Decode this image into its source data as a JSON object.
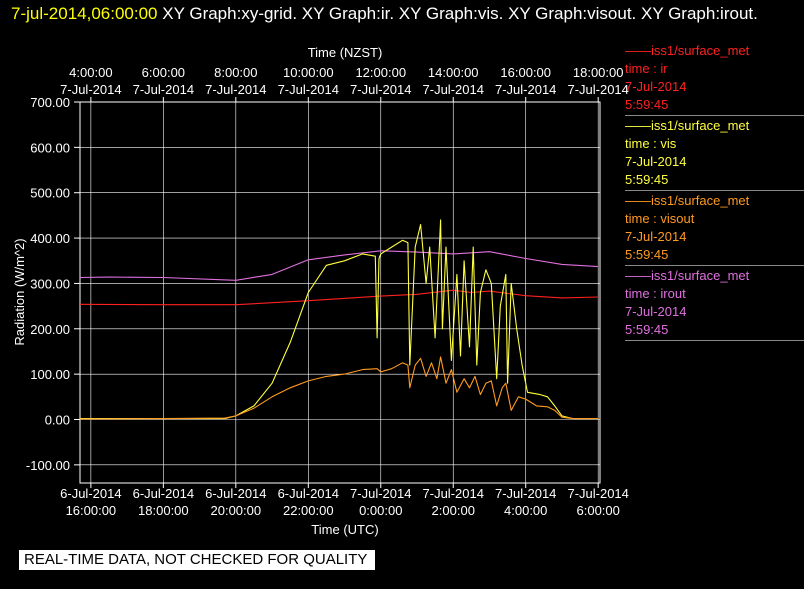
{
  "header": {
    "timestamp": "7-jul-2014,06:00:00",
    "graphs": "XY Graph:xy-grid.  XY Graph:ir.  XY Graph:vis.  XY Graph:visout.  XY Graph:irout."
  },
  "banner": "REAL-TIME DATA, NOT CHECKED FOR QUALITY",
  "legend": [
    {
      "source": "iss1/surface_met",
      "field": "time : ir",
      "date": "7-Jul-2014",
      "time": "5:59:45",
      "color": "#ff2020"
    },
    {
      "source": "iss1/surface_met",
      "field": "time : vis",
      "date": "7-Jul-2014",
      "time": "5:59:45",
      "color": "#ffff40"
    },
    {
      "source": "iss1/surface_met",
      "field": "time : visout",
      "date": "7-Jul-2014",
      "time": "5:59:45",
      "color": "#ff9a20"
    },
    {
      "source": "iss1/surface_met",
      "field": "time : irout",
      "date": "7-Jul-2014",
      "time": "5:59:45",
      "color": "#e070e0"
    }
  ],
  "chart_data": {
    "type": "line",
    "ylabel": "Radiation (W/m^2)",
    "xlabel_top": "Time (NZST)",
    "xlabel_bottom": "Time (UTC)",
    "ylim": [
      -140,
      700
    ],
    "xlim_utc_hours": [
      -8.3,
      6.05
    ],
    "grid": true,
    "yticks": [
      {
        "value": 700,
        "label": "700.00"
      },
      {
        "value": 600,
        "label": "600.00"
      },
      {
        "value": 500,
        "label": "500.00"
      },
      {
        "value": 400,
        "label": "400.00"
      },
      {
        "value": 300,
        "label": "300.00"
      },
      {
        "value": 200,
        "label": "200.00"
      },
      {
        "value": 100,
        "label": "100.00"
      },
      {
        "value": 0,
        "label": "0.00"
      },
      {
        "value": -100,
        "label": "-100.00"
      }
    ],
    "xticks_bottom": [
      {
        "x": -8,
        "date": "6-Jul-2014",
        "time": "16:00:00"
      },
      {
        "x": -6,
        "date": "6-Jul-2014",
        "time": "18:00:00"
      },
      {
        "x": -4,
        "date": "6-Jul-2014",
        "time": "20:00:00"
      },
      {
        "x": -2,
        "date": "6-Jul-2014",
        "time": "22:00:00"
      },
      {
        "x": 0,
        "date": "7-Jul-2014",
        "time": "0:00:00"
      },
      {
        "x": 2,
        "date": "7-Jul-2014",
        "time": "2:00:00"
      },
      {
        "x": 4,
        "date": "7-Jul-2014",
        "time": "4:00:00"
      },
      {
        "x": 6,
        "date": "7-Jul-2014",
        "time": "6:00:00"
      }
    ],
    "xticks_top": [
      {
        "x": -8,
        "time": "4:00:00",
        "date": "7-Jul-2014"
      },
      {
        "x": -6,
        "time": "6:00:00",
        "date": "7-Jul-2014"
      },
      {
        "x": -4,
        "time": "8:00:00",
        "date": "7-Jul-2014"
      },
      {
        "x": -2,
        "time": "10:00:00",
        "date": "7-Jul-2014"
      },
      {
        "x": 0,
        "time": "12:00:00",
        "date": "7-Jul-2014"
      },
      {
        "x": 2,
        "time": "14:00:00",
        "date": "7-Jul-2014"
      },
      {
        "x": 4,
        "time": "16:00:00",
        "date": "7-Jul-2014"
      },
      {
        "x": 6,
        "time": "18:00:00",
        "date": "7-Jul-2014"
      }
    ],
    "series": [
      {
        "name": "time : irout",
        "color": "#e070e0",
        "x": [
          -8.3,
          -7.5,
          -6,
          -4,
          -3,
          -2,
          -1,
          0,
          1,
          2,
          3,
          4,
          5,
          6
        ],
        "y": [
          313,
          314,
          313,
          307,
          320,
          352,
          363,
          372,
          369,
          365,
          370,
          355,
          342,
          337
        ]
      },
      {
        "name": "time : ir",
        "color": "#ff2020",
        "x": [
          -8.3,
          -6,
          -4,
          -2,
          0,
          1,
          2,
          2.5,
          3,
          4,
          5,
          6
        ],
        "y": [
          254,
          253,
          253,
          262,
          272,
          276,
          285,
          280,
          283,
          273,
          268,
          270
        ]
      },
      {
        "name": "time : vis",
        "color": "#ffff40",
        "x": [
          -8.3,
          -6,
          -4.3,
          -4,
          -3.5,
          -3,
          -2.5,
          -2,
          -1.5,
          -1,
          -0.5,
          -0.15,
          -0.1,
          -0.05,
          0,
          0.3,
          0.6,
          0.75,
          0.8,
          0.95,
          1.1,
          1.25,
          1.35,
          1.5,
          1.65,
          1.7,
          1.8,
          1.95,
          2.1,
          2.2,
          2.3,
          2.45,
          2.55,
          2.65,
          2.75,
          2.9,
          3.05,
          3.2,
          3.3,
          3.45,
          3.5,
          3.6,
          3.75,
          3.9,
          4.05,
          4.4,
          4.6,
          4.8,
          5,
          5.3,
          6
        ],
        "y": [
          2,
          2,
          2,
          8,
          30,
          80,
          170,
          280,
          340,
          350,
          365,
          360,
          180,
          355,
          365,
          380,
          395,
          390,
          120,
          380,
          430,
          300,
          380,
          180,
          440,
          200,
          380,
          130,
          320,
          140,
          350,
          160,
          380,
          120,
          280,
          330,
          300,
          90,
          250,
          320,
          80,
          300,
          200,
          120,
          60,
          55,
          50,
          30,
          8,
          2,
          2
        ]
      },
      {
        "name": "time : visout",
        "color": "#ff9a20",
        "x": [
          -8.3,
          -6,
          -4.3,
          -4,
          -3.5,
          -3,
          -2.5,
          -2,
          -1.5,
          -1,
          -0.5,
          -0.1,
          0,
          0.3,
          0.6,
          0.75,
          0.8,
          0.95,
          1.1,
          1.25,
          1.4,
          1.55,
          1.65,
          1.8,
          1.95,
          2.1,
          2.3,
          2.45,
          2.6,
          2.75,
          2.9,
          3.05,
          3.2,
          3.35,
          3.45,
          3.6,
          3.8,
          4,
          4.3,
          4.6,
          4.8,
          5,
          5.3,
          6
        ],
        "y": [
          1,
          2,
          3,
          8,
          25,
          50,
          70,
          85,
          95,
          100,
          110,
          112,
          105,
          112,
          125,
          120,
          70,
          120,
          135,
          95,
          125,
          90,
          138,
          80,
          110,
          60,
          90,
          70,
          95,
          55,
          80,
          85,
          30,
          70,
          80,
          20,
          50,
          45,
          30,
          28,
          20,
          5,
          2,
          2
        ]
      }
    ]
  }
}
